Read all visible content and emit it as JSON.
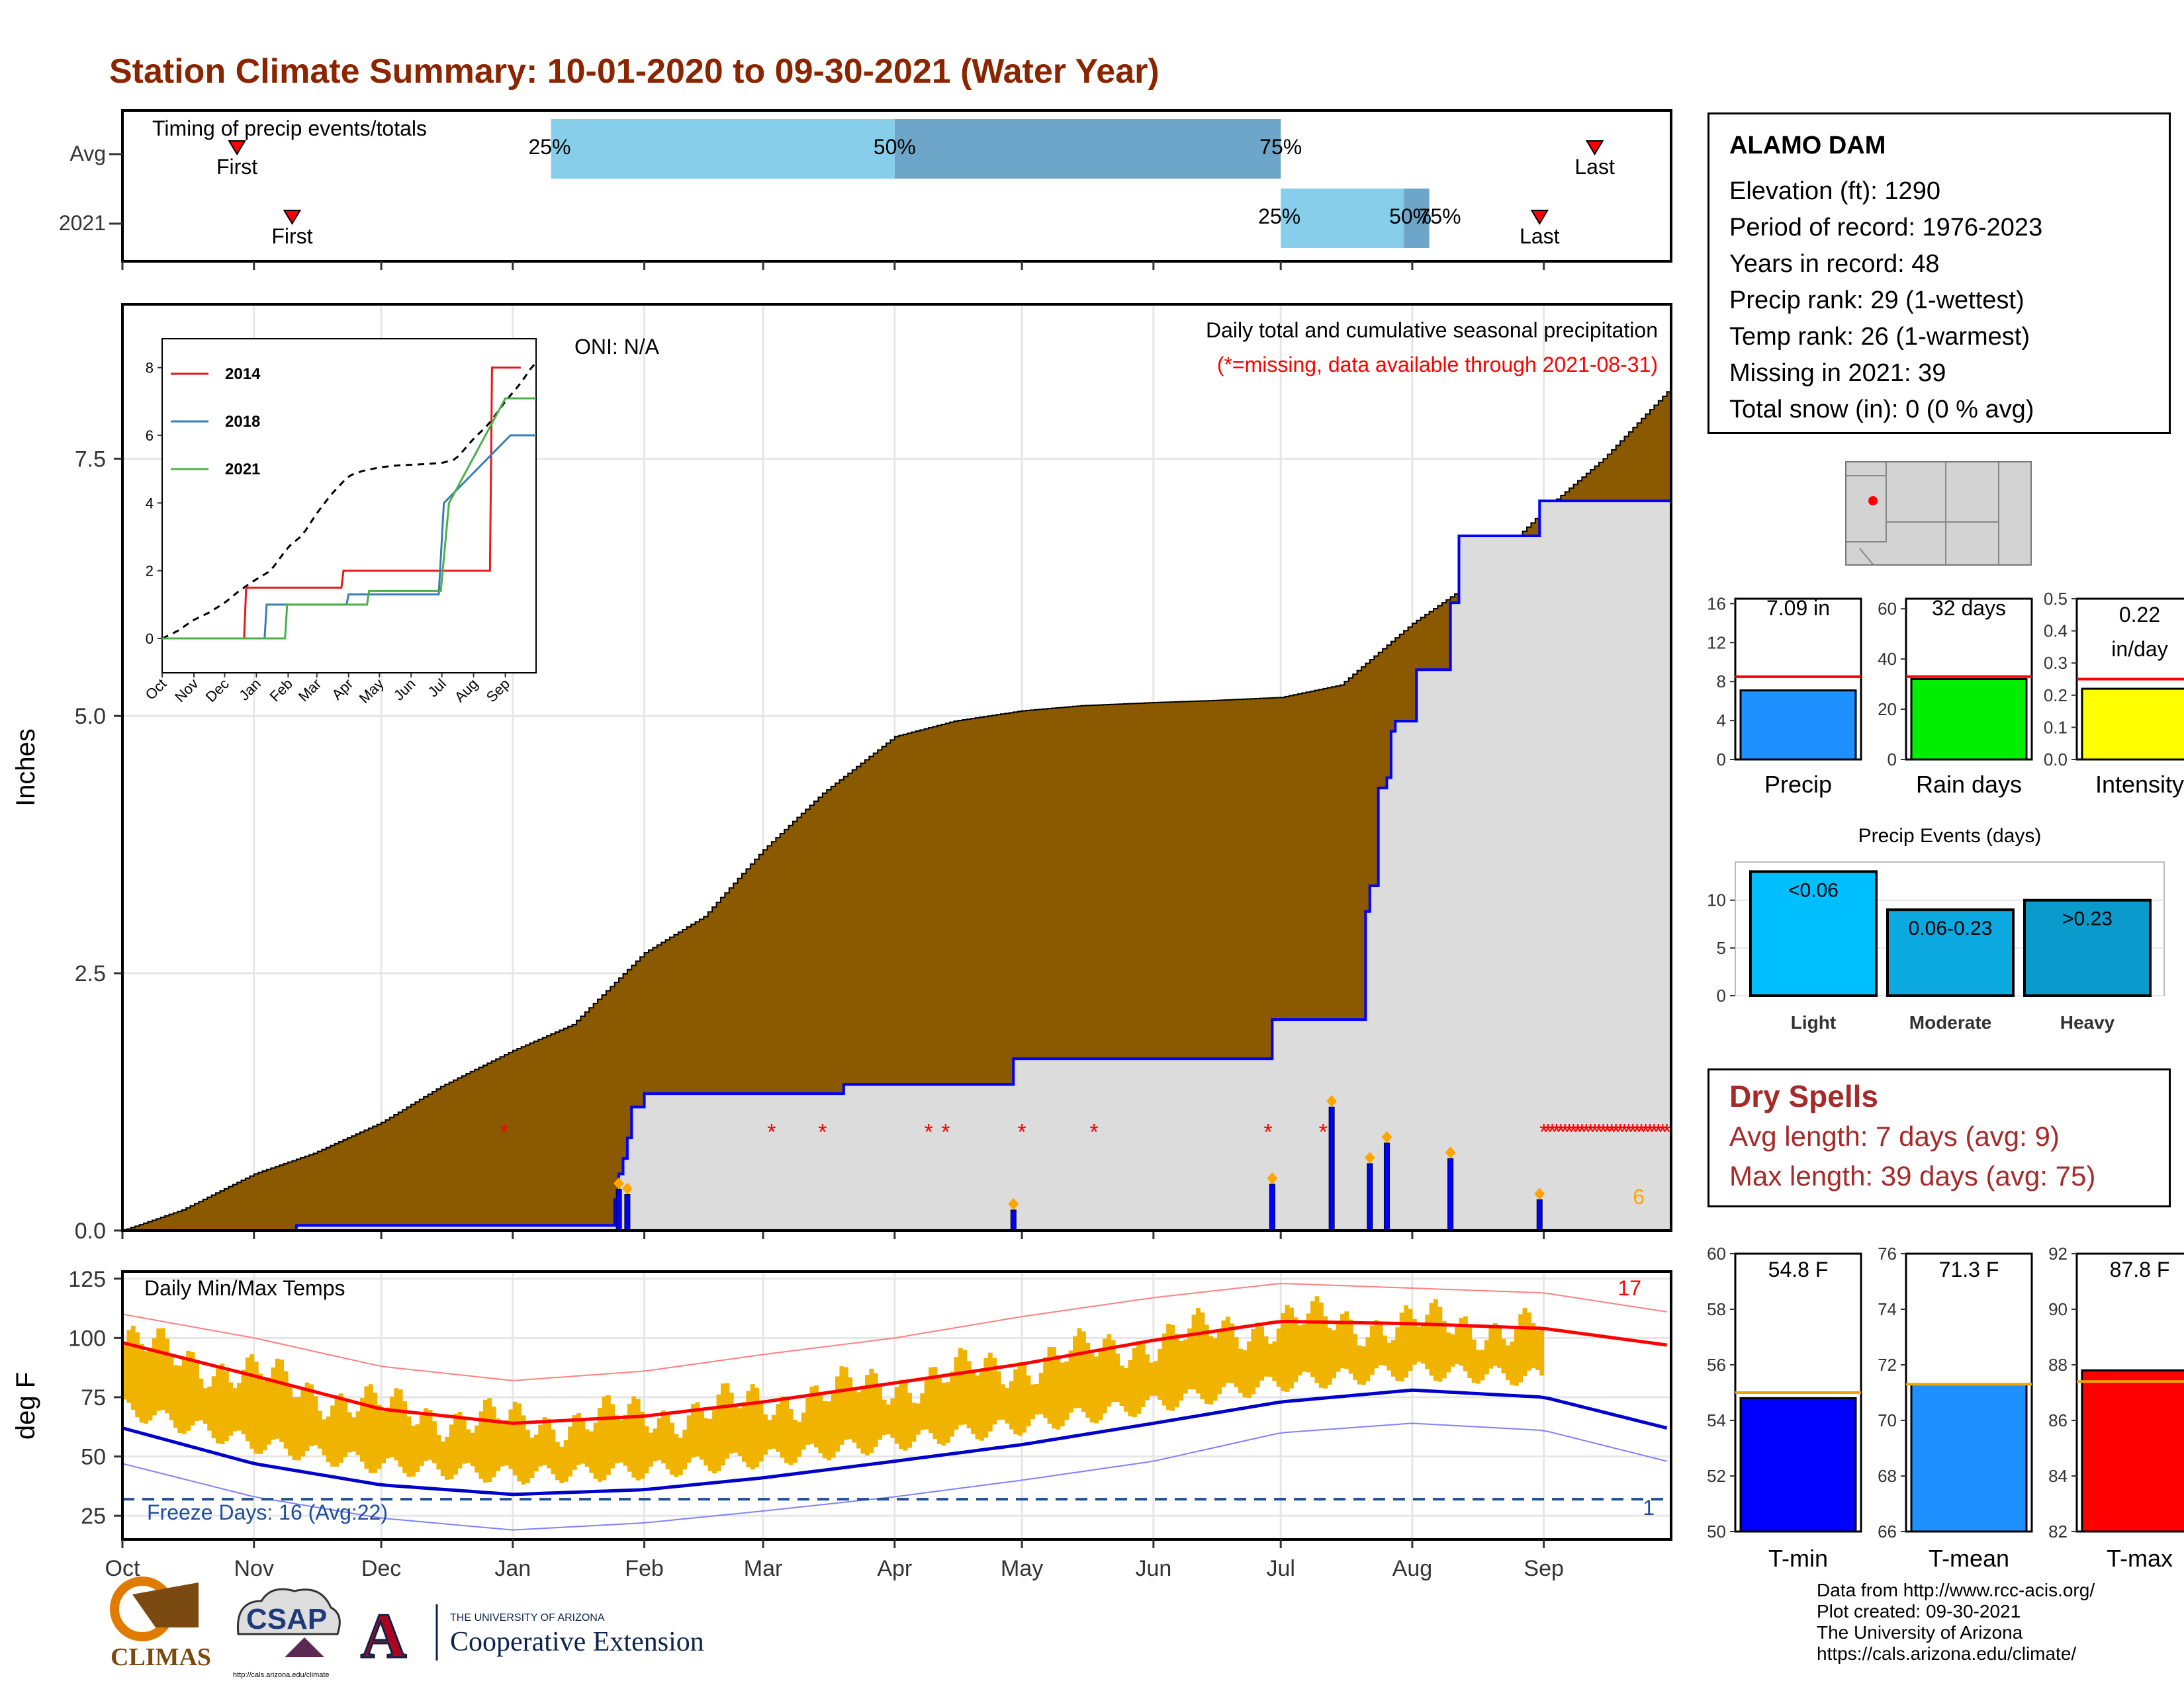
{
  "title": "Station Climate Summary: 10-01-2020 to 09-30-2021 (Water Year)",
  "colors": {
    "title": "#8b2500",
    "cum_fill": "#8b5a00",
    "current_cum": "#0000ff",
    "light_blue": "#87ceeb",
    "mid_blue": "#6ea6c9",
    "tmax_avg": "#ff0000",
    "tmin_avg": "#0000cc",
    "temp_bar": "#f0b400",
    "missing": "#ff0000"
  },
  "timing": {
    "label": "Timing of precip events/totals",
    "rows": [
      "Avg",
      "2021"
    ],
    "first_label": "First",
    "last_label": "Last",
    "avg": {
      "first": "Oct 28",
      "p25": "Jan 10",
      "p50": "Apr 01",
      "p75": "Jul 01",
      "last": "Sep 13"
    },
    "y2021": {
      "first": "Nov 10",
      "p25": "Jul 01",
      "p50": "Jul 30",
      "p75": "Aug 05",
      "last": "Aug 31"
    },
    "p_labels": [
      "25%",
      "50%",
      "75%"
    ]
  },
  "precip_panel": {
    "ylabel": "Inches",
    "yticks": [
      "0.0",
      "2.5",
      "5.0",
      "7.5"
    ],
    "oni": "ONI: N/A",
    "note1": "Daily total and cumulative seasonal precipitation",
    "note2": "(*=missing, data available through 2021-08-31)",
    "missing_count": "6"
  },
  "inset": {
    "yticks": [
      "0",
      "2",
      "4",
      "6",
      "8"
    ],
    "xticks": [
      "Oct",
      "Nov",
      "Dec",
      "Jan",
      "Feb",
      "Mar",
      "Apr",
      "May",
      "Jun",
      "Jul",
      "Aug",
      "Sep"
    ],
    "legend": [
      "2014",
      "2018",
      "2021"
    ]
  },
  "temp_panel": {
    "ylabel": "deg F",
    "label": "Daily Min/Max Temps",
    "yticks": [
      "25",
      "50",
      "75",
      "100",
      "125"
    ],
    "freeze": "Freeze Days: 16 (Avg:22)",
    "count_hi": "17",
    "count_lo": "1"
  },
  "months": [
    "Oct",
    "Nov",
    "Dec",
    "Jan",
    "Feb",
    "Mar",
    "Apr",
    "May",
    "Jun",
    "Jul",
    "Aug",
    "Sep"
  ],
  "station": {
    "name": "ALAMO DAM",
    "lines": [
      "Elevation (ft): 1290",
      "Period of record: 1976-2023",
      "Years in record: 48",
      "Precip rank: 29 (1-wettest)",
      "Temp rank: 26 (1-warmest)",
      "Missing in 2021: 39",
      "Total snow (in): 0 (0 % avg)"
    ]
  },
  "mini_bars": [
    {
      "label": "Precip",
      "value_text": "7.09 in",
      "value": 7.09,
      "avg": 8.5,
      "max": 16.5,
      "ticks": [
        "0",
        "4",
        "8",
        "12",
        "16"
      ],
      "color": "#1e90ff"
    },
    {
      "label": "Rain days",
      "value_text": "32 days",
      "value": 32,
      "avg": 33,
      "max": 64,
      "ticks": [
        "0",
        "20",
        "40",
        "60"
      ],
      "color": "#00ee00"
    },
    {
      "label": "Intensity",
      "value_text": "0.22 in/day",
      "value": 0.22,
      "avg": 0.25,
      "max": 0.5,
      "ticks": [
        "0.0",
        "0.1",
        "0.2",
        "0.3",
        "0.4",
        "0.5"
      ],
      "color": "#ffff00"
    }
  ],
  "events": {
    "title": "Precip Events (days)",
    "ticks": [
      "0",
      "5",
      "10"
    ],
    "bars": [
      {
        "label": "Light",
        "text": "<0.06",
        "value": 13,
        "color": "#00bfff"
      },
      {
        "label": "Moderate",
        "text": "0.06-0.23",
        "value": 9,
        "color": "#0ca8e0"
      },
      {
        "label": "Heavy",
        "text": ">0.23",
        "value": 10,
        "color": "#0a9acc"
      }
    ]
  },
  "dry_spells": {
    "title": "Dry Spells",
    "avg": "Avg length: 7 days (avg: 9)",
    "max": "Max length: 39 days (avg: 75)"
  },
  "temp_bars": [
    {
      "label": "T-min",
      "value_text": "54.8 F",
      "value": 54.8,
      "avg": 55.0,
      "min": 50,
      "max": 60,
      "ticks": [
        "50",
        "52",
        "54",
        "56",
        "58",
        "60"
      ],
      "color": "#0000ff"
    },
    {
      "label": "T-mean",
      "value_text": "71.3 F",
      "value": 71.3,
      "avg": 71.3,
      "min": 66,
      "max": 76,
      "ticks": [
        "66",
        "68",
        "70",
        "72",
        "74",
        "76"
      ],
      "color": "#1e90ff"
    },
    {
      "label": "T-max",
      "value_text": "87.8 F",
      "value": 87.8,
      "avg": 87.4,
      "min": 82,
      "max": 92,
      "ticks": [
        "82",
        "84",
        "86",
        "88",
        "90",
        "92"
      ],
      "color": "#ff0000"
    }
  ],
  "footer": [
    "Data from http://www.rcc-acis.org/",
    "Plot created: 09-30-2021",
    "The University of Arizona",
    "https://cals.arizona.edu/climate/"
  ],
  "logos": {
    "climas": "CLIMAS",
    "csap": "CSAP",
    "csap_url": "http://cals.arizona.edu/climate",
    "ua_small": "THE UNIVERSITY OF ARIZONA",
    "ua_big": "Cooperative Extension"
  },
  "chart_data": [
    {
      "type": "area",
      "title": "Daily total and cumulative seasonal precipitation",
      "ylabel": "Inches",
      "ylim": [
        0,
        9
      ],
      "series": [
        {
          "name": "Avg cumulative",
          "x": [
            "Oct 01",
            "Oct 15",
            "Nov 01",
            "Nov 15",
            "Dec 01",
            "Dec 15",
            "Jan 01",
            "Jan 15",
            "Feb 01",
            "Feb 15",
            "Mar 01",
            "Mar 15",
            "Apr 01",
            "Apr 15",
            "May 01",
            "May 15",
            "Jun 01",
            "Jun 15",
            "Jul 01",
            "Jul 15",
            "Aug 01",
            "Aug 15",
            "Sep 01",
            "Sep 15",
            "Sep 30"
          ],
          "values": [
            0.0,
            0.2,
            0.55,
            0.75,
            1.05,
            1.4,
            1.75,
            2.0,
            2.7,
            3.05,
            3.7,
            4.25,
            4.8,
            4.95,
            5.05,
            5.1,
            5.13,
            5.15,
            5.18,
            5.3,
            5.9,
            6.3,
            7.0,
            7.5,
            8.15
          ]
        },
        {
          "name": "2021 cumulative",
          "x": [
            "Oct 01",
            "Nov 11",
            "Jan 25",
            "Jan 26",
            "Jan 27",
            "Jan 28",
            "Jan 29",
            "Feb 01",
            "Mar 20",
            "Apr 28",
            "Apr 29",
            "Jun 28",
            "Jun 29",
            "Jul 21",
            "Jul 22",
            "Jul 24",
            "Jul 26",
            "Jul 27",
            "Jul 28",
            "Aug 02",
            "Aug 10",
            "Aug 12",
            "Aug 31",
            "Sep 30"
          ],
          "values": [
            0.0,
            0.05,
            0.3,
            0.55,
            0.7,
            0.9,
            1.2,
            1.33,
            1.42,
            1.42,
            1.67,
            1.67,
            2.05,
            3.1,
            3.35,
            4.3,
            4.4,
            4.85,
            4.95,
            5.45,
            6.1,
            6.75,
            7.09,
            7.09
          ]
        }
      ],
      "daily_events": [
        {
          "date": "Jan 26",
          "value": 0.4
        },
        {
          "date": "Jan 28",
          "value": 0.35
        },
        {
          "date": "Apr 29",
          "value": 0.2
        },
        {
          "date": "Jun 29",
          "value": 0.45
        },
        {
          "date": "Jul 13",
          "value": 1.2
        },
        {
          "date": "Jul 22",
          "value": 0.65
        },
        {
          "date": "Jul 26",
          "value": 0.85
        },
        {
          "date": "Aug 10",
          "value": 0.7
        },
        {
          "date": "Aug 31",
          "value": 0.3
        }
      ],
      "missing_dates": [
        "Dec 30",
        "Mar 03",
        "Mar 15",
        "Apr 09",
        "Apr 13",
        "May 01",
        "May 18",
        "Jun 28",
        "Jul 11",
        "Sep 01-Sep 30"
      ]
    },
    {
      "type": "line",
      "title": "Daily Min/Max Temps",
      "ylabel": "deg F",
      "ylim": [
        15,
        128
      ],
      "x": [
        "Oct 01",
        "Nov 01",
        "Dec 01",
        "Jan 01",
        "Feb 01",
        "Mar 01",
        "Apr 01",
        "May 01",
        "Jun 01",
        "Jul 01",
        "Aug 01",
        "Sep 01",
        "Sep 30"
      ],
      "series": [
        {
          "name": "Avg max",
          "values": [
            98,
            84,
            70,
            64,
            67,
            73,
            81,
            89,
            99,
            107,
            106,
            104,
            97
          ]
        },
        {
          "name": "Avg min",
          "values": [
            62,
            47,
            38,
            34,
            36,
            41,
            48,
            55,
            64,
            73,
            78,
            75,
            62
          ]
        },
        {
          "name": "Record max",
          "values": [
            110,
            100,
            88,
            82,
            86,
            93,
            100,
            109,
            117,
            123,
            121,
            119,
            111
          ]
        },
        {
          "name": "Record min",
          "values": [
            47,
            33,
            24,
            19,
            22,
            27,
            33,
            40,
            48,
            60,
            64,
            61,
            48
          ]
        }
      ]
    }
  ]
}
